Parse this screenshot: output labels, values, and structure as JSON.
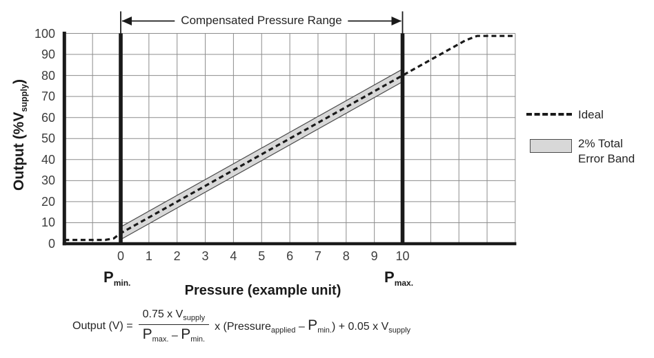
{
  "figure": {
    "range_annotation": "Compensated Pressure Range",
    "y_axis_title": {
      "pre": "Output (%V",
      "sub": "supply",
      "post": ")"
    },
    "x_axis_title": "Pressure (example unit)",
    "p_min": {
      "main": "P",
      "sub": "min."
    },
    "p_max": {
      "main": "P",
      "sub": "max."
    }
  },
  "legend": {
    "ideal_label": "Ideal",
    "band_label_line1": "2% Total",
    "band_label_line2": "Error Band"
  },
  "formula": {
    "lhs": "Output (V) =",
    "num": {
      "t": "0.75 x V",
      "sub": "supply"
    },
    "den": {
      "p1": "P",
      "sub1": "max.",
      "minus": " – ",
      "p2": "P",
      "sub2": "min."
    },
    "rhs": {
      "t1": "x (Pressure",
      "sub1": "applied",
      "minus": " – ",
      "p": "P",
      "sub2": "min.",
      "t2": ") + 0.05 x V",
      "sub3": "supply"
    }
  },
  "colors": {
    "ink": "#1a1a1a",
    "text": "#3d3d3d",
    "grid": "#8c8c8c",
    "band_fill": "#d8d8d8",
    "band_edge": "#4a4a4a",
    "background": "#ffffff"
  },
  "chart_data": {
    "type": "line",
    "title": "",
    "xlabel": "Pressure (example unit)",
    "ylabel": "Output (%Vsupply)",
    "xlim": [
      -2,
      14
    ],
    "ylim": [
      0,
      100
    ],
    "x_ticks": [
      0,
      1,
      2,
      3,
      4,
      5,
      6,
      7,
      8,
      9,
      10
    ],
    "y_ticks": [
      0,
      10,
      20,
      30,
      40,
      50,
      60,
      70,
      80,
      90,
      100
    ],
    "grid": true,
    "legend_position": "right",
    "series": [
      {
        "name": "Ideal",
        "style": "dashed-line",
        "points": [
          [
            -2,
            1.8
          ],
          [
            -0.55,
            1.8
          ],
          [
            -0.25,
            2.5
          ],
          [
            0,
            5
          ],
          [
            10,
            80
          ],
          [
            12.25,
            96.8
          ],
          [
            12.65,
            98.8
          ],
          [
            14,
            98.8
          ]
        ],
        "note": "output is 5% Vsupply at Pmin and 80% Vsupply at Pmax"
      },
      {
        "name": "2% Total Error Band",
        "style": "band",
        "upper": [
          [
            0,
            8
          ],
          [
            10,
            83
          ]
        ],
        "lower": [
          [
            0,
            2
          ],
          [
            10,
            77
          ]
        ]
      }
    ],
    "markers": {
      "p_min_x": 0,
      "p_max_x": 10,
      "compensated_range": [
        0,
        10
      ]
    }
  }
}
